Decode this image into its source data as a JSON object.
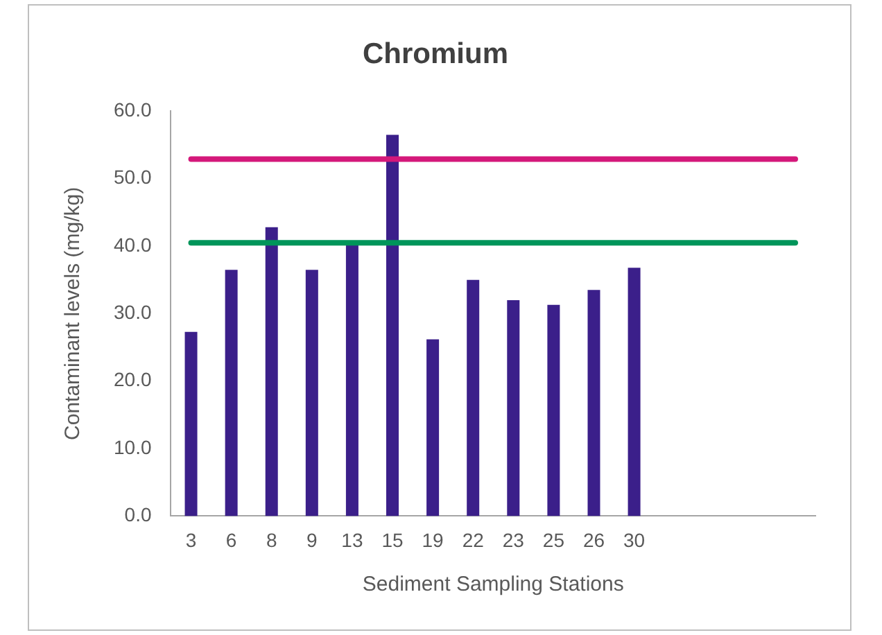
{
  "chart_data": {
    "type": "bar",
    "title": "Chromium",
    "xlabel": "Sediment Sampling Stations",
    "ylabel": "Contaminant levels (mg/kg)",
    "categories": [
      "3",
      "6",
      "8",
      "9",
      "13",
      "15",
      "19",
      "22",
      "23",
      "25",
      "26",
      "30",
      null,
      null,
      null,
      null
    ],
    "series": [
      {
        "color": "#3b1f8a",
        "values": [
          27.3,
          36.5,
          42.8,
          36.5,
          40.1,
          56.5,
          26.2,
          35.0,
          32.0,
          31.3,
          33.5,
          36.8,
          null,
          null,
          null,
          null
        ]
      }
    ],
    "ylim": [
      0,
      60
    ],
    "yticks": [
      {
        "value": 0,
        "label": "0.0"
      },
      {
        "value": 10,
        "label": "10.0"
      },
      {
        "value": 20,
        "label": "20.0"
      },
      {
        "value": 30,
        "label": "30.0"
      },
      {
        "value": 40,
        "label": "40.0"
      },
      {
        "value": 50,
        "label": "50.0"
      },
      {
        "value": 60,
        "label": "60.0"
      }
    ],
    "ref_lines": [
      {
        "axis": "y",
        "value": 52.9,
        "color": "#d4187a"
      },
      {
        "axis": "y",
        "value": 40.5,
        "color": "#00955a"
      }
    ],
    "grid": false,
    "legend": false
  }
}
